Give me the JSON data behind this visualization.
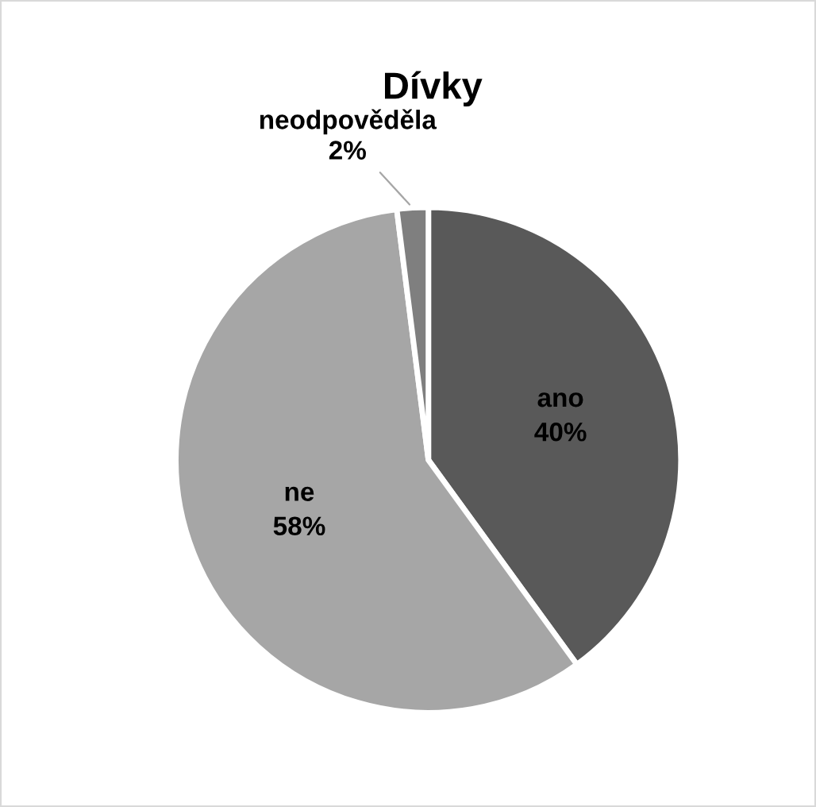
{
  "chart_data": {
    "type": "pie",
    "title": "Dívky",
    "categories": [
      "ano",
      "ne",
      "neodpověděla"
    ],
    "values": [
      40,
      58,
      2
    ],
    "colors": [
      "#595959",
      "#a6a6a6",
      "#7f7f7f"
    ],
    "value_labels": [
      "40%",
      "58%",
      "2%"
    ]
  }
}
